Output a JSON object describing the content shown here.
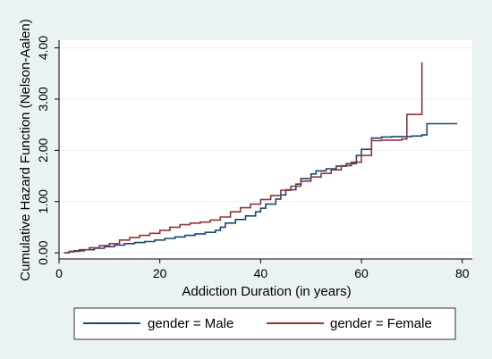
{
  "chart_data": {
    "type": "line",
    "xlabel": "Addiction Duration (in years)",
    "ylabel": "Cumulative Hazard Function (Nelson-Aalen)",
    "xlim": [
      0,
      82
    ],
    "ylim": [
      -0.12,
      4.15
    ],
    "xticks": [
      0,
      20,
      40,
      60,
      80
    ],
    "xtick_labels": [
      "0",
      "20",
      "40",
      "60",
      "80"
    ],
    "yticks": [
      0,
      1,
      2,
      3,
      4
    ],
    "ytick_labels": [
      "0.00",
      "1.00",
      "2.00",
      "3.00",
      "4.00"
    ],
    "grid": "horizontal",
    "legend_position": "bottom",
    "series": [
      {
        "name": "gender = Male",
        "color": "#1a476f",
        "points": [
          [
            1,
            0
          ],
          [
            2,
            0.02
          ],
          [
            3,
            0.04
          ],
          [
            5,
            0.06
          ],
          [
            7,
            0.09
          ],
          [
            9,
            0.12
          ],
          [
            11,
            0.15
          ],
          [
            13,
            0.18
          ],
          [
            15,
            0.2
          ],
          [
            17,
            0.22
          ],
          [
            19,
            0.25
          ],
          [
            21,
            0.28
          ],
          [
            23,
            0.31
          ],
          [
            25,
            0.34
          ],
          [
            27,
            0.37
          ],
          [
            29,
            0.4
          ],
          [
            31,
            0.44
          ],
          [
            32,
            0.5
          ],
          [
            33,
            0.58
          ],
          [
            35,
            0.65
          ],
          [
            37,
            0.72
          ],
          [
            39,
            0.8
          ],
          [
            40,
            0.87
          ],
          [
            41,
            0.95
          ],
          [
            43,
            1.05
          ],
          [
            44,
            1.13
          ],
          [
            45,
            1.23
          ],
          [
            47,
            1.34
          ],
          [
            48,
            1.45
          ],
          [
            50,
            1.54
          ],
          [
            51,
            1.6
          ],
          [
            53,
            1.64
          ],
          [
            55,
            1.69
          ],
          [
            57,
            1.74
          ],
          [
            59,
            1.9
          ],
          [
            60,
            2.02
          ],
          [
            62,
            2.24
          ],
          [
            64,
            2.26
          ],
          [
            66,
            2.27
          ],
          [
            68,
            2.27
          ],
          [
            70,
            2.28
          ],
          [
            72,
            2.3
          ],
          [
            73,
            2.52
          ],
          [
            79,
            2.52
          ]
        ]
      },
      {
        "name": "gender = Female",
        "color": "#90353b",
        "points": [
          [
            1,
            0
          ],
          [
            2,
            0.03
          ],
          [
            4,
            0.06
          ],
          [
            6,
            0.1
          ],
          [
            8,
            0.14
          ],
          [
            10,
            0.18
          ],
          [
            12,
            0.25
          ],
          [
            14,
            0.3
          ],
          [
            16,
            0.34
          ],
          [
            18,
            0.38
          ],
          [
            20,
            0.44
          ],
          [
            22,
            0.5
          ],
          [
            24,
            0.55
          ],
          [
            26,
            0.58
          ],
          [
            28,
            0.6
          ],
          [
            30,
            0.64
          ],
          [
            32,
            0.7
          ],
          [
            34,
            0.8
          ],
          [
            36,
            0.88
          ],
          [
            38,
            0.95
          ],
          [
            40,
            1.04
          ],
          [
            42,
            1.12
          ],
          [
            44,
            1.22
          ],
          [
            46,
            1.3
          ],
          [
            48,
            1.4
          ],
          [
            50,
            1.48
          ],
          [
            52,
            1.55
          ],
          [
            54,
            1.62
          ],
          [
            56,
            1.7
          ],
          [
            58,
            1.77
          ],
          [
            60,
            1.9
          ],
          [
            62,
            2.19
          ],
          [
            64,
            2.2
          ],
          [
            66,
            2.2
          ],
          [
            68,
            2.22
          ],
          [
            69,
            2.7
          ],
          [
            72,
            2.72
          ],
          [
            72,
            3.72
          ]
        ]
      }
    ]
  }
}
